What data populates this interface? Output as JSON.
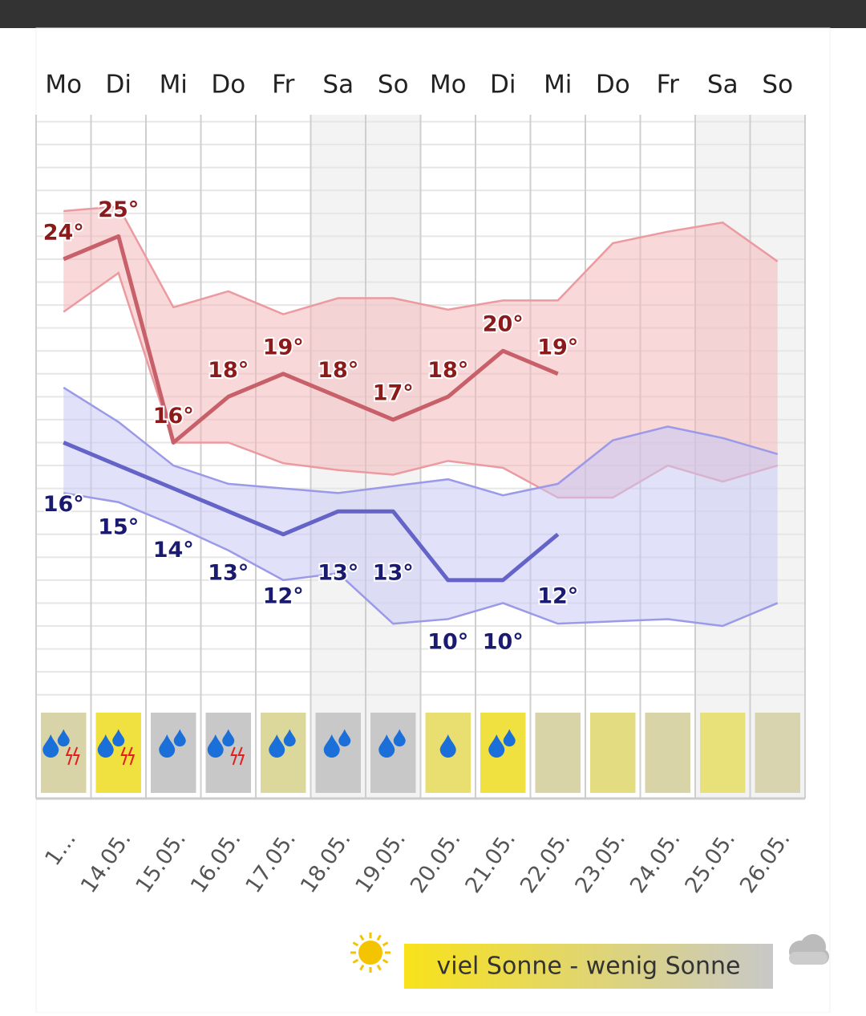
{
  "chart_data": {
    "type": "line",
    "days": [
      "Mo",
      "Di",
      "Mi",
      "Do",
      "Fr",
      "Sa",
      "So",
      "Mo",
      "Di",
      "Mi",
      "Do",
      "Fr",
      "Sa",
      "So"
    ],
    "dates": [
      "1…",
      "14.05.",
      "15.05.",
      "16.05.",
      "17.05.",
      "18.05.",
      "19.05.",
      "20.05.",
      "21.05.",
      "22.05.",
      "23.05.",
      "24.05.",
      "25.05.",
      "26.05."
    ],
    "weekend": [
      false,
      false,
      false,
      false,
      false,
      true,
      true,
      false,
      false,
      false,
      false,
      false,
      true,
      true
    ],
    "ylim": [
      4.5,
      30.3
    ],
    "yticks": [
      5,
      6,
      7,
      8,
      9,
      10,
      11,
      12,
      13,
      14,
      15,
      16,
      17,
      18,
      19,
      20,
      21,
      22,
      23,
      24,
      25,
      26,
      27,
      28,
      29,
      30
    ],
    "grid": true,
    "series": [
      {
        "color": "#c8606a",
        "label_color": "#8b1a1a",
        "band_color": "#f4b8bc",
        "band_edge": "#eb9aa0",
        "values": [
          24,
          25,
          16,
          18,
          19,
          18,
          17,
          18,
          20,
          19,
          null,
          null,
          null,
          null
        ],
        "value_labels": [
          "24°",
          "25°",
          "16°",
          "18°",
          "19°",
          "18°",
          "17°",
          "18°",
          "20°",
          "19°",
          null,
          null,
          null,
          null
        ],
        "band_upper": [
          26.1,
          26.3,
          21.9,
          22.6,
          21.6,
          22.3,
          22.3,
          21.8,
          22.2,
          22.2,
          24.7,
          25.2,
          25.6,
          23.9
        ],
        "band_lower": [
          21.7,
          23.4,
          16.0,
          16.0,
          15.1,
          14.8,
          14.6,
          15.2,
          14.9,
          13.6,
          13.6,
          15.0,
          14.3,
          15.0
        ]
      },
      {
        "color": "#6464c8",
        "label_color": "#1a1a70",
        "band_color": "#c8c8f4",
        "band_edge": "#9a9ae8",
        "values": [
          16,
          15,
          14,
          13,
          12,
          13,
          13,
          10,
          10,
          12,
          null,
          null,
          null,
          null
        ],
        "value_labels": [
          "16°",
          "15°",
          "14°",
          "13°",
          "12°",
          "13°",
          "13°",
          "10°",
          "10°",
          "12°",
          null,
          null,
          null,
          null
        ],
        "band_upper": [
          18.4,
          16.9,
          15.0,
          14.2,
          14.0,
          13.8,
          14.1,
          14.4,
          13.7,
          14.2,
          16.1,
          16.7,
          16.2,
          15.5
        ],
        "band_lower": [
          13.8,
          13.4,
          12.4,
          11.3,
          10.0,
          10.3,
          8.1,
          8.3,
          9.0,
          8.1,
          8.2,
          8.3,
          8.0,
          9.0
        ]
      }
    ],
    "sunshine": {
      "colors": [
        "#d8d4a8",
        "#f0e040",
        "#c8c8c8",
        "#c8c8c8",
        "#dcd89c",
        "#c8c8c8",
        "#c8c8c8",
        "#e8df70",
        "#f0e040",
        "#d8d4a8",
        "#e4dc80",
        "#d8d4a8",
        "#e8e078",
        "#d8d4b0"
      ],
      "drops": [
        2,
        2,
        2,
        2,
        2,
        2,
        2,
        1,
        2,
        0,
        0,
        0,
        0,
        0
      ],
      "thunder": [
        true,
        true,
        false,
        true,
        false,
        false,
        false,
        false,
        false,
        false,
        false,
        false,
        false,
        false
      ]
    },
    "legend": "viel Sonne - wenig Sonne"
  }
}
